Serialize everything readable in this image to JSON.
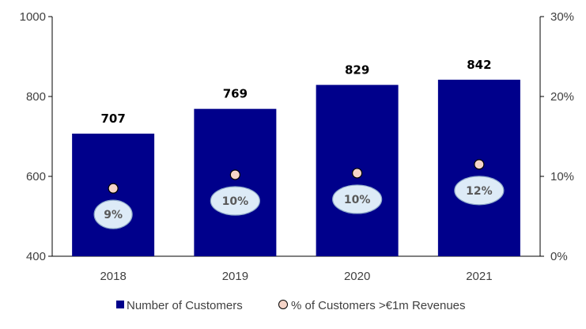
{
  "chart_data": {
    "type": "bar",
    "categories": [
      "2018",
      "2019",
      "2020",
      "2021"
    ],
    "series": [
      {
        "name": "Number of Customers",
        "type": "bar",
        "axis": "left",
        "values": [
          707,
          769,
          829,
          842
        ],
        "labels": [
          "707",
          "769",
          "829",
          "842"
        ]
      },
      {
        "name": "% of Customers >€1m Revenues",
        "type": "scatter",
        "axis": "right",
        "values": [
          8.5,
          10.2,
          10.4,
          11.5
        ],
        "labels": [
          "9%",
          "10%",
          "10%",
          "12%"
        ]
      }
    ],
    "y_left": {
      "min": 400,
      "max": 1000,
      "ticks": [
        "400",
        "600",
        "800",
        "1000"
      ]
    },
    "y_right": {
      "min": 0,
      "max": 30,
      "ticks": [
        "0%",
        "10%",
        "20%",
        "30%"
      ]
    },
    "legend_position": "bottom",
    "grid": false,
    "colors": {
      "bar": "#00008B",
      "marker_fill": "#F5D4C8",
      "marker_stroke": "#000000",
      "bubble_fill": "#DDEBF7",
      "bubble_stroke": "#8EA9C8",
      "axis": "#000000",
      "text": "#404040"
    }
  }
}
